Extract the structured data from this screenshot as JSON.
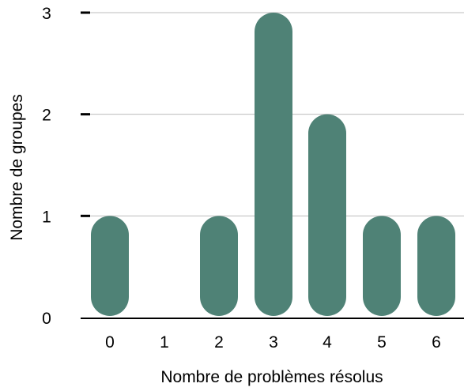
{
  "chart_data": {
    "type": "bar",
    "title": "",
    "xlabel": "Nombre de problèmes résolus",
    "ylabel": "Nombre de groupes",
    "categories": [
      "0",
      "1",
      "2",
      "3",
      "4",
      "5",
      "6"
    ],
    "values": [
      1,
      0,
      1,
      3,
      2,
      1,
      1
    ],
    "y_ticks": [
      "0",
      "1",
      "2",
      "3"
    ],
    "ylim": [
      0,
      3
    ],
    "grid": true,
    "legend": "none",
    "colors": {
      "bar": "#4f8276",
      "grid": "#bdbdbd",
      "axis": "#000000"
    }
  }
}
